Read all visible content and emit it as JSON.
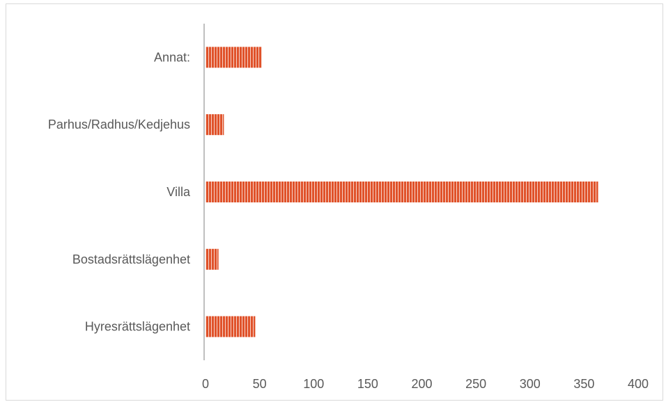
{
  "chart_data": {
    "type": "bar",
    "orientation": "horizontal",
    "title": "",
    "xlabel": "",
    "ylabel": "",
    "categories": [
      "Hyresrättslägenhet",
      "Bostadsrättslägenhet",
      "Villa",
      "Parhus/Radhus/Kedjehus",
      "Annat:"
    ],
    "values": [
      46,
      12,
      363,
      17,
      52
    ],
    "xlim": [
      0,
      400
    ],
    "xticks": [
      "0",
      "50",
      "100",
      "150",
      "200",
      "250",
      "300",
      "350",
      "400"
    ],
    "grid": false,
    "legend": "none",
    "bar_color": "#e0522a",
    "bar_stripe_color": "#ffffff",
    "axis_color": "#bfbfbf"
  }
}
